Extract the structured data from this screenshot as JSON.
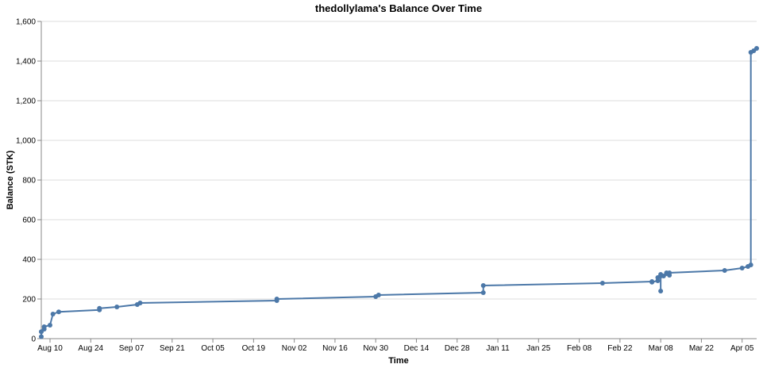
{
  "chart_data": {
    "type": "line",
    "title": "thedollylama's Balance Over Time",
    "x_label": "Time",
    "y_label": "Balance (STK)",
    "x": [
      "Aug 07",
      "Aug 07",
      "Aug 08",
      "Aug 08",
      "Aug 10",
      "Aug 11",
      "Aug 13",
      "Aug 27",
      "Aug 27",
      "Sep 02",
      "Sep 09",
      "Sep 10",
      "Oct 27",
      "Oct 27",
      "Nov 30",
      "Dec 01",
      "Jan 06",
      "Jan 06",
      "Feb 16",
      "Mar 05",
      "Mar 05",
      "Mar 07",
      "Mar 07",
      "Mar 08",
      "Mar 08",
      "Mar 08",
      "Mar 08",
      "Mar 09",
      "Mar 10",
      "Mar 10",
      "Mar 11",
      "Mar 11",
      "Mar 30",
      "Apr 05",
      "Apr 07",
      "Apr 08",
      "Apr 08",
      "Apr 09",
      "Apr 10"
    ],
    "series": [
      {
        "name": "Balance",
        "color": "#4c78a8",
        "values": [
          10,
          35,
          48,
          60,
          68,
          124,
          135,
          145,
          153,
          160,
          172,
          180,
          192,
          200,
          212,
          220,
          232,
          268,
          280,
          288,
          285,
          292,
          308,
          316,
          324,
          240,
          316,
          316,
          328,
          332,
          320,
          332,
          344,
          356,
          364,
          372,
          1444,
          1452,
          1464
        ]
      }
    ],
    "xlim": [
      "Aug 07",
      "Apr 10"
    ],
    "xticks": [
      "Aug 10",
      "Aug 24",
      "Sep 07",
      "Sep 21",
      "Oct 05",
      "Oct 19",
      "Nov 02",
      "Nov 16",
      "Nov 30",
      "Dec 14",
      "Dec 28",
      "Jan 11",
      "Jan 25",
      "Feb 08",
      "Feb 22",
      "Mar 08",
      "Mar 22",
      "Apr 05"
    ],
    "ylim": [
      0,
      1600
    ],
    "yticks": [
      0,
      200,
      400,
      600,
      800,
      {
        "value": 1000,
        "label": "1,000"
      },
      {
        "value": 1200,
        "label": "1,200"
      },
      {
        "value": 1400,
        "label": "1,400"
      },
      {
        "value": 1600,
        "label": "1,600"
      }
    ],
    "grid": true
  }
}
